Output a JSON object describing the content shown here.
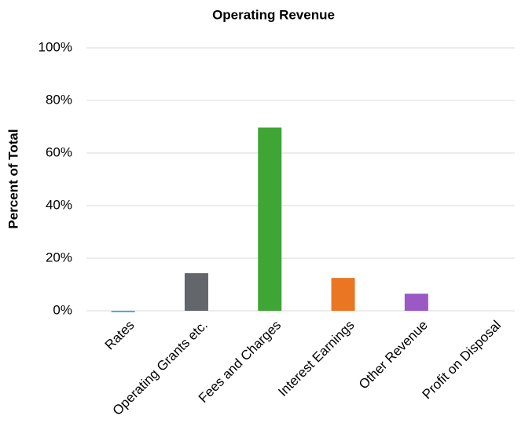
{
  "chart_data": {
    "type": "bar",
    "title": "Operating Revenue",
    "y_label": "Percent of Total",
    "categories": [
      "Rates",
      "Operating Grants etc.",
      "Fees and Charges",
      "Interest Earnings",
      "Other Revenue",
      "Profit on Disposal"
    ],
    "values": [
      -0.5,
      14.3,
      69.7,
      12.5,
      6.5,
      0
    ],
    "colors": [
      "#2e9ff0",
      "#63666a",
      "#3fa535",
      "#ea7624",
      "#9b59c6",
      "#888888"
    ],
    "ylim": [
      0,
      100
    ],
    "yticks": [
      {
        "value": 0,
        "label": "0%"
      },
      {
        "value": 20,
        "label": "20%"
      },
      {
        "value": 40,
        "label": "40%"
      },
      {
        "value": 60,
        "label": "60%"
      },
      {
        "value": 80,
        "label": "80%"
      },
      {
        "value": 100,
        "label": "100%"
      }
    ],
    "grid": true
  }
}
